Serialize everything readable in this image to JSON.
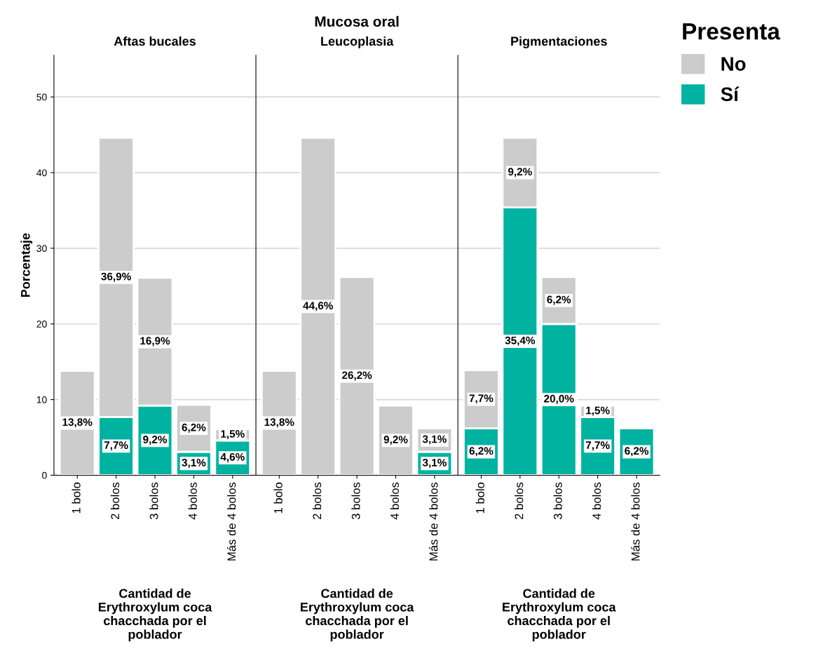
{
  "chart_data": [
    {
      "type": "bar",
      "title": "Aftas bucales",
      "annotations": [
        "Mucosa oral"
      ],
      "xlabel": "Cantidad de Erythroxylum coca chacchada por el poblador",
      "ylabel": "Porcentaje",
      "stacked": true,
      "categories": [
        "1 bolo",
        "2 bolos",
        "3 bolos",
        "4 bolos",
        "Más de 4 bolos"
      ],
      "ylim": [
        0,
        55.5
      ],
      "yticks": [
        0,
        10,
        20,
        30,
        40,
        50
      ],
      "grid": "y",
      "legend": false,
      "series": [
        {
          "color": "#00b3a1",
          "values": [
            0,
            7.7,
            9.2,
            3.1,
            4.6
          ],
          "value_labels": [
            null,
            "7,7%",
            "9,2%",
            "3,1%",
            "4,6%"
          ]
        },
        {
          "color": "#cccccc",
          "values": [
            13.8,
            36.9,
            16.9,
            6.2,
            1.5
          ],
          "value_labels": [
            "13,8%",
            "36,9%",
            "16,9%",
            "6,2%",
            "1,5%"
          ]
        }
      ]
    },
    {
      "type": "bar",
      "title": "Leucoplasia",
      "xlabel": "Cantidad de Erythroxylum coca chacchada por el poblador",
      "stacked": true,
      "categories": [
        "1 bolo",
        "2 bolos",
        "3 bolos",
        "4 bolos",
        "Más de 4 bolos"
      ],
      "ylim": [
        0,
        55.5
      ],
      "yticks": [
        0,
        10,
        20,
        30,
        40,
        50
      ],
      "tick_labels": "x",
      "grid": "y",
      "legend": false,
      "series": [
        {
          "color": "#00b3a1",
          "values": [
            0,
            0,
            0,
            0,
            3.1
          ],
          "value_labels": [
            null,
            null,
            null,
            null,
            "3,1%"
          ]
        },
        {
          "color": "#cccccc",
          "values": [
            13.8,
            44.6,
            26.2,
            9.2,
            3.1
          ],
          "value_labels": [
            "13,8%",
            "44,6%",
            "26,2%",
            "9,2%",
            "3,1%"
          ]
        }
      ]
    },
    {
      "type": "bar",
      "title": "Pigmentaciones",
      "xlabel": "Cantidad de Erythroxylum coca chacchada por el poblador",
      "stacked": true,
      "categories": [
        "1 bolo",
        "2 bolos",
        "3 bolos",
        "4 bolos",
        "Más de 4 bolos"
      ],
      "ylim": [
        0,
        55.5
      ],
      "yticks": [
        0,
        10,
        20,
        30,
        40,
        50
      ],
      "tick_labels": "x",
      "grid": "y",
      "legend": "top right",
      "legend_title": "Presenta",
      "series": [
        {
          "name": "Sí",
          "color": "#00b3a1",
          "values": [
            6.2,
            35.4,
            20.0,
            7.7,
            6.2
          ],
          "value_labels": [
            "6,2%",
            "35,4%",
            "20,0%",
            "7,7%",
            "6,2%"
          ]
        },
        {
          "name": "No",
          "color": "#cccccc",
          "values": [
            7.7,
            9.2,
            6.2,
            1.5,
            0
          ],
          "value_labels": [
            "7,7%",
            "9,2%",
            "6,2%",
            "1,5%",
            null
          ]
        }
      ]
    }
  ]
}
